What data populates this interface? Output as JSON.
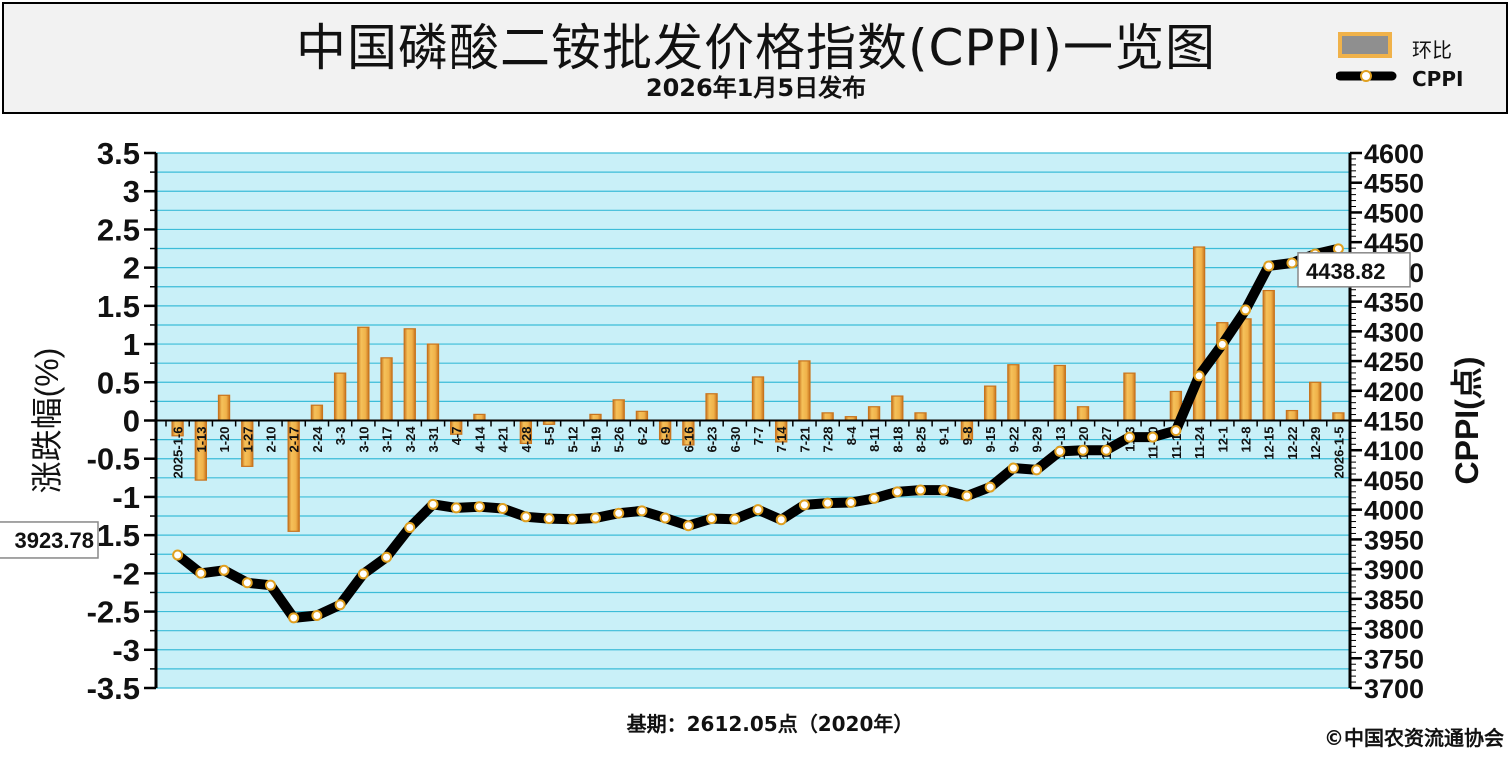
{
  "header": {
    "title": "中国磷酸二铵批发价格指数(CPPI)一览图",
    "subtitle": "2026年1月5日发布"
  },
  "footer": {
    "base_note": "基期：2612.05点（2020年）",
    "copyright": "©中国农资流通协会"
  },
  "legend": {
    "bar_label": "环比",
    "line_label": "CPPI"
  },
  "colors": {
    "bar_fill": "#f0b24a",
    "bar_edge": "#c8741e",
    "plot_bg": "#c9f0f8",
    "grid": "#3cbcd8",
    "line": "#000000",
    "marker_fill": "#ffffff",
    "marker_edge": "#e0a020"
  },
  "chart_data": {
    "type": "bar",
    "ylabel": "涨跌幅(%)",
    "y2label": "CPPI(点)",
    "ylim": [
      -3.5,
      3.5
    ],
    "y2lim": [
      3700,
      4600
    ],
    "y_ticks": [
      "3.5",
      "3",
      "2.5",
      "2",
      "1.5",
      "1",
      "0.5",
      "0",
      "-0.5",
      "-1",
      "-1.5",
      "-2",
      "-2.5",
      "-3",
      "-3.5"
    ],
    "y2_ticks": [
      "4600",
      "4550",
      "4500",
      "4450",
      "4400",
      "4350",
      "4300",
      "4250",
      "4200",
      "4150",
      "4100",
      "4050",
      "4000",
      "3950",
      "3900",
      "3850",
      "3800",
      "3750",
      "3700"
    ],
    "categories": [
      "2025-1-6",
      "1-13",
      "1-20",
      "1-27",
      "2-10",
      "2-17",
      "2-24",
      "3-3",
      "3-10",
      "3-17",
      "3-24",
      "3-31",
      "4-7",
      "4-14",
      "4-21",
      "4-28",
      "5-5",
      "5-12",
      "5-19",
      "5-26",
      "6-2",
      "6-9",
      "6-16",
      "6-23",
      "6-30",
      "7-7",
      "7-14",
      "7-21",
      "7-28",
      "8-4",
      "8-11",
      "8-18",
      "8-25",
      "9-1",
      "9-8",
      "9-15",
      "9-22",
      "9-29",
      "10-13",
      "10-20",
      "10-27",
      "11-3",
      "11-10",
      "11-17",
      "11-24",
      "12-1",
      "12-8",
      "12-15",
      "12-22",
      "12-29",
      "2026-1-5"
    ],
    "series": [
      {
        "name": "环比",
        "type": "bar",
        "axis": "left",
        "values": [
          -0.2,
          -0.78,
          0.33,
          -0.6,
          0.0,
          -1.45,
          0.2,
          0.62,
          1.22,
          0.82,
          1.2,
          1.0,
          -0.18,
          0.08,
          0.0,
          -0.3,
          -0.05,
          0.0,
          0.08,
          0.27,
          0.12,
          -0.25,
          -0.32,
          0.35,
          0.0,
          0.57,
          -0.28,
          0.78,
          0.1,
          0.05,
          0.18,
          0.32,
          0.1,
          0.0,
          -0.25,
          0.45,
          0.73,
          0.0,
          0.72,
          0.18,
          0.0,
          0.62,
          0.0,
          0.38,
          2.27,
          1.28,
          1.33,
          1.7,
          0.13,
          0.5,
          0.1
        ]
      },
      {
        "name": "CPPI",
        "type": "line",
        "axis": "right",
        "values": [
          3923.78,
          3893,
          3898,
          3877,
          3873,
          3818,
          3822,
          3840,
          3892,
          3920,
          3970,
          4009,
          4003,
          4005,
          4002,
          3988,
          3985,
          3984,
          3986,
          3994,
          3998,
          3986,
          3973,
          3985,
          3984,
          4000,
          3983,
          4008,
          4011,
          4012,
          4019,
          4030,
          4033,
          4033,
          4023,
          4038,
          4070,
          4067,
          4098,
          4100,
          4100,
          4122,
          4122,
          4133,
          4225,
          4278,
          4336,
          4410,
          4415,
          4430,
          4438.82
        ]
      }
    ],
    "first_point_label": "3923.78",
    "last_point_label": "4438.82"
  }
}
